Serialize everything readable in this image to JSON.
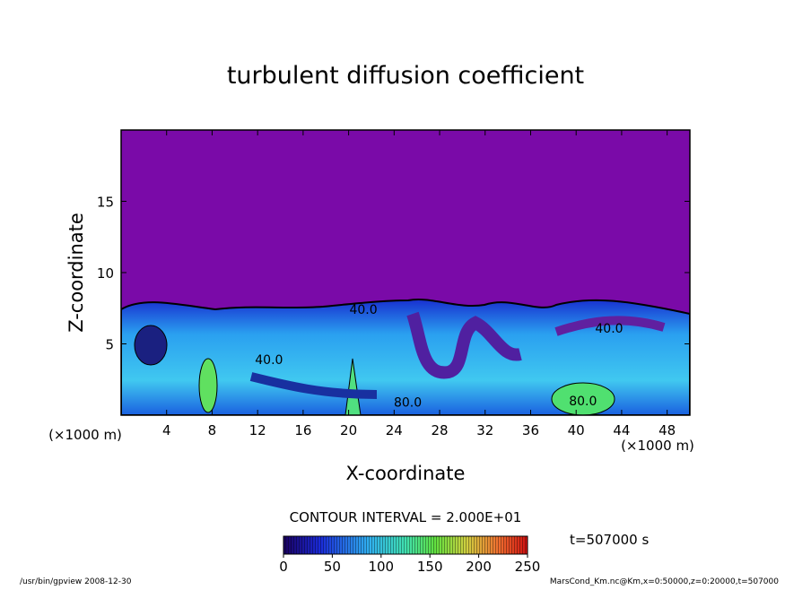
{
  "chart_data": {
    "type": "contour",
    "title": "turbulent diffusion coefficient",
    "xlabel": "X-coordinate",
    "ylabel": "Z-coordinate",
    "x_unit": "(×1000 m)",
    "y_unit": "(×1000 m)",
    "xlim": [
      0,
      50
    ],
    "ylim": [
      0,
      20
    ],
    "xticks": [
      4,
      8,
      12,
      16,
      20,
      24,
      28,
      32,
      36,
      40,
      44,
      48
    ],
    "yticks": [
      5,
      10,
      15
    ],
    "contour_interval": "CONTOUR INTERVAL = 2.000E+01",
    "time_label": "t=507000 s",
    "contour_labels": [
      {
        "x": 21.3,
        "z": 7.1,
        "value": 40,
        "label": "40.0"
      },
      {
        "x": 13.0,
        "z": 3.6,
        "value": 40,
        "label": "40.0"
      },
      {
        "x": 42.9,
        "z": 5.8,
        "value": 40,
        "label": "40.0"
      },
      {
        "x": 25.2,
        "z": 0.6,
        "value": 80,
        "label": "80.0"
      },
      {
        "x": 40.6,
        "z": 0.7,
        "value": 80,
        "label": "80.0"
      }
    ],
    "colorbar": {
      "lim": [
        0,
        250
      ],
      "ticks": [
        0,
        50,
        100,
        150,
        200,
        250
      ]
    },
    "footer_left": "/usr/bin/gpview   2008-12-30",
    "footer_right": "MarsCond_Km.nc@Km,x=0:50000,z=0:20000,t=507000"
  }
}
